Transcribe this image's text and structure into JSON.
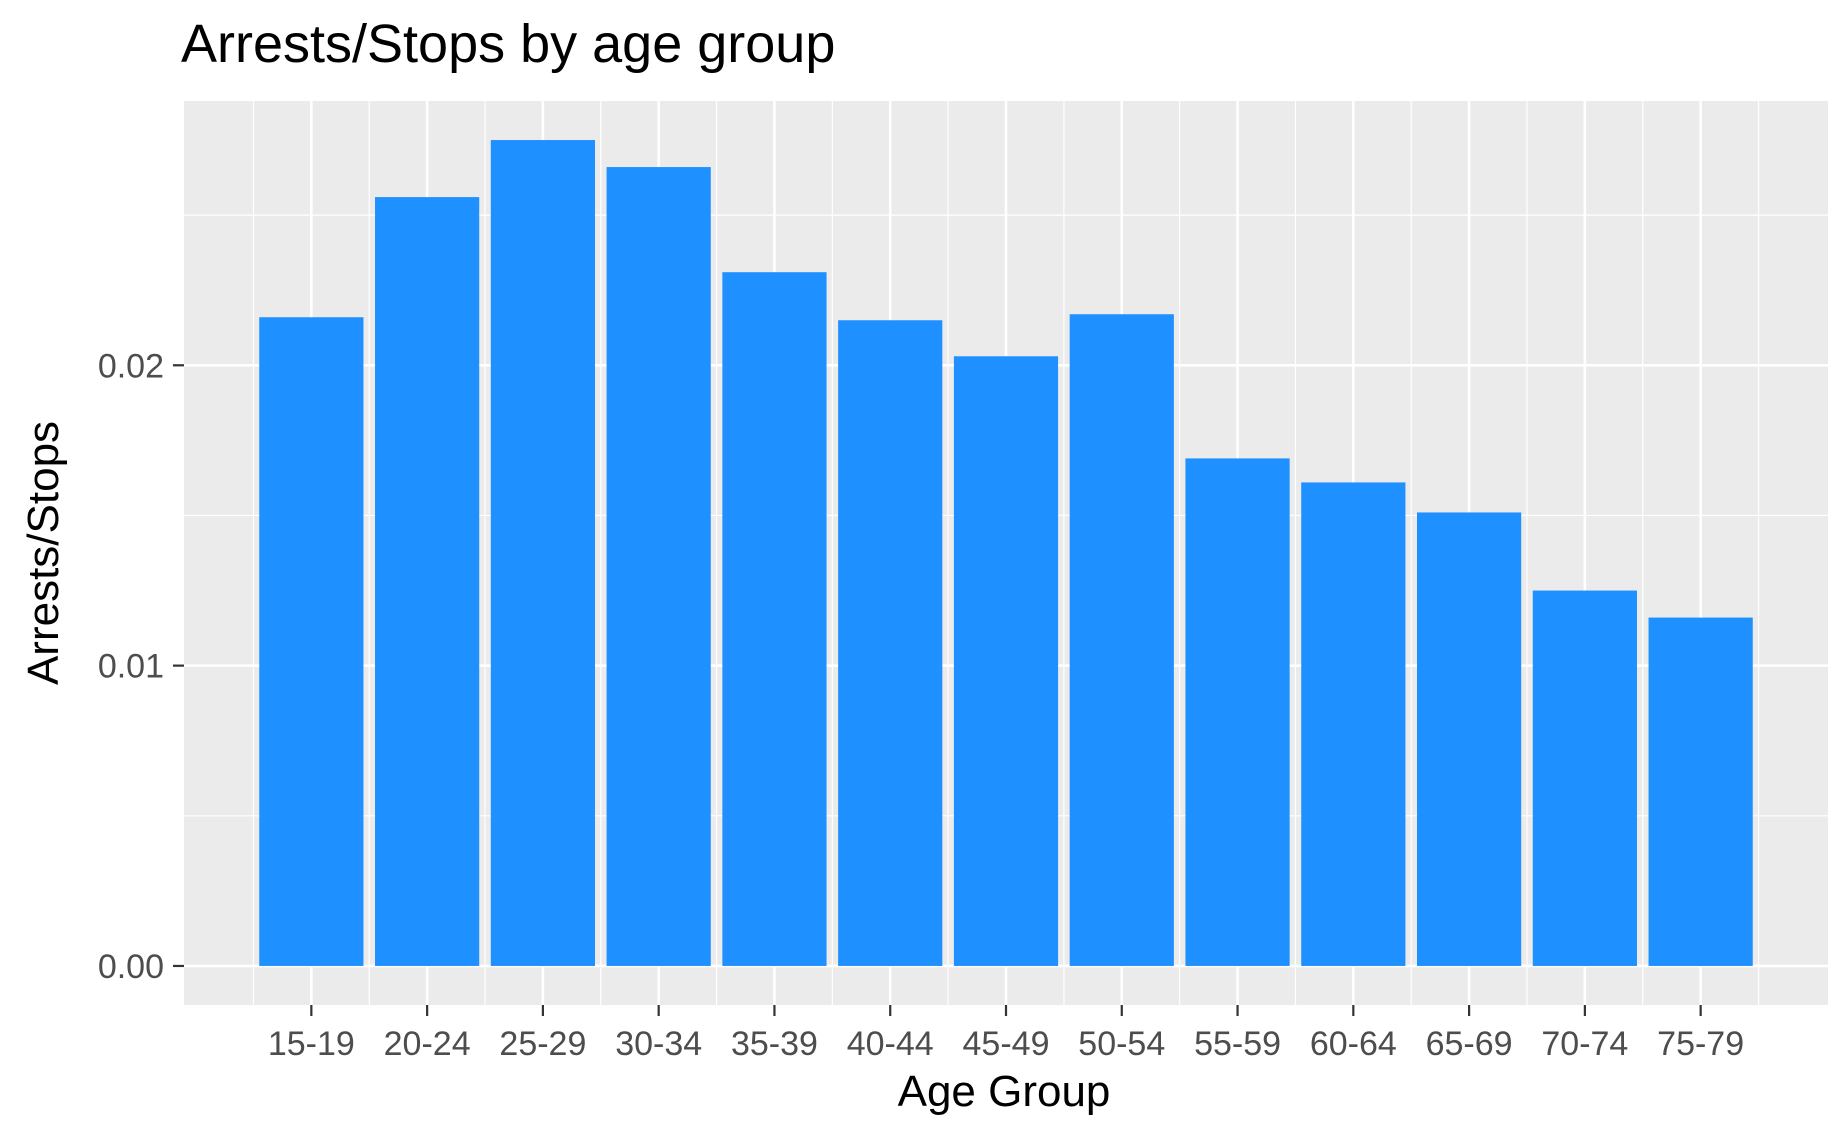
{
  "chart_data": {
    "type": "bar",
    "title": "Arrests/Stops by age group",
    "xlabel": "Age Group",
    "ylabel": "Arrests/Stops",
    "categories": [
      "15-19",
      "20-24",
      "25-29",
      "30-34",
      "35-39",
      "40-44",
      "45-49",
      "50-54",
      "55-59",
      "60-64",
      "65-69",
      "70-74",
      "75-79"
    ],
    "values": [
      0.0216,
      0.0256,
      0.0275,
      0.0266,
      0.0231,
      0.0215,
      0.0203,
      0.0217,
      0.0169,
      0.0161,
      0.0151,
      0.0125,
      0.0116
    ],
    "ylim": [
      -0.0013,
      0.0288
    ],
    "yticks": [
      0.0,
      0.01,
      0.02
    ],
    "ytick_labels": [
      "0.00",
      "0.01",
      "0.02"
    ],
    "grid": true,
    "colors": {
      "bar": "#1E90FF",
      "panel_background": "#EBEBEB",
      "grid": "#FFFFFF"
    }
  }
}
